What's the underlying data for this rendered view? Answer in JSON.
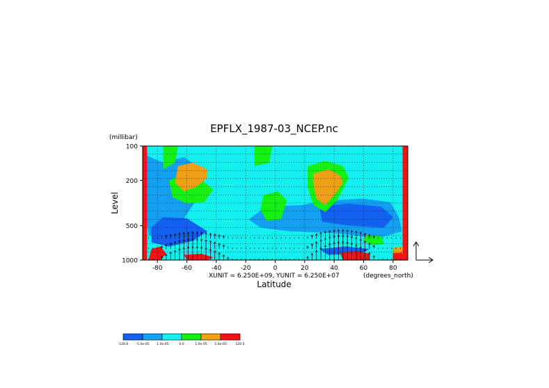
{
  "chart_data": {
    "type": "heatmap",
    "title": "EPFLX_1987-03_NCEP.nc",
    "xlabel": "Latitude",
    "ylabel": "Level",
    "y_unit_label": "(millibar)",
    "x_unit_label": "(degrees_north)",
    "vector_units": "XUNIT = 6.250E+09, YUNIT = 6.250E+07",
    "xlim": [
      -90,
      90
    ],
    "ylim": [
      1000,
      100
    ],
    "y_scale": "log",
    "x_ticks": [
      {
        "value": -80,
        "label": "-80"
      },
      {
        "value": -60,
        "label": "-60"
      },
      {
        "value": -40,
        "label": "-40"
      },
      {
        "value": -20,
        "label": "-20"
      },
      {
        "value": 0,
        "label": "0"
      },
      {
        "value": 20,
        "label": "20"
      },
      {
        "value": 40,
        "label": "40"
      },
      {
        "value": 60,
        "label": "60"
      },
      {
        "value": 80,
        "label": "80"
      }
    ],
    "y_ticks": [
      {
        "value": 100,
        "label": "100"
      },
      {
        "value": 200,
        "label": "200"
      },
      {
        "value": 500,
        "label": "500"
      },
      {
        "value": 1000,
        "label": "1000"
      }
    ],
    "colorbar": {
      "colors": [
        "#1460f0",
        "#14a0f0",
        "#14f0f0",
        "#14f014",
        "#f0a014",
        "#f01414"
      ],
      "labels": [
        "-120.0",
        "-5.0e-05",
        "-1.0e-05",
        "0.0",
        "1.0e-05",
        "5.0e-05",
        "120.0"
      ]
    },
    "regions": [
      {
        "level": 1,
        "lat": [
          [
            -88,
            120
          ],
          [
            -76,
            140
          ],
          [
            -62,
            125
          ],
          [
            -50,
            160
          ],
          [
            -48,
            230
          ],
          [
            -56,
            330
          ],
          [
            -68,
            560
          ],
          [
            -78,
            680
          ],
          [
            -86,
            600
          ],
          [
            -88,
            400
          ]
        ]
      },
      {
        "level": 1,
        "lat": [
          [
            -18,
            440
          ],
          [
            -6,
            340
          ],
          [
            18,
            330
          ],
          [
            34,
            300
          ],
          [
            60,
            290
          ],
          [
            78,
            310
          ],
          [
            84,
            420
          ],
          [
            86,
            560
          ],
          [
            70,
            640
          ],
          [
            40,
            580
          ],
          [
            10,
            560
          ],
          [
            -10,
            520
          ]
        ]
      },
      {
        "level": 0,
        "lat": [
          [
            -84,
            520
          ],
          [
            -76,
            420
          ],
          [
            -60,
            430
          ],
          [
            -46,
            560
          ],
          [
            -56,
            680
          ],
          [
            -72,
            760
          ],
          [
            -84,
            700
          ]
        ]
      },
      {
        "level": 0,
        "lat": [
          [
            30,
            340
          ],
          [
            50,
            320
          ],
          [
            72,
            340
          ],
          [
            80,
            420
          ],
          [
            74,
            520
          ],
          [
            50,
            500
          ],
          [
            32,
            460
          ]
        ]
      },
      {
        "level": 0,
        "lat": [
          [
            30,
            800
          ],
          [
            48,
            760
          ],
          [
            64,
            800
          ],
          [
            58,
            880
          ],
          [
            36,
            900
          ]
        ]
      },
      {
        "level": 3,
        "lat": [
          [
            -76,
            100
          ],
          [
            -66,
            100
          ],
          [
            -68,
            140
          ],
          [
            -76,
            160
          ]
        ]
      },
      {
        "level": 3,
        "lat": [
          [
            -14,
            100
          ],
          [
            -2,
            100
          ],
          [
            -4,
            140
          ],
          [
            -14,
            150
          ]
        ]
      },
      {
        "level": 3,
        "lat": [
          [
            -72,
            200
          ],
          [
            -64,
            180
          ],
          [
            -52,
            190
          ],
          [
            -42,
            240
          ],
          [
            -48,
            310
          ],
          [
            -60,
            320
          ],
          [
            -70,
            280
          ]
        ]
      },
      {
        "level": 3,
        "lat": [
          [
            -8,
            270
          ],
          [
            2,
            250
          ],
          [
            8,
            300
          ],
          [
            4,
            440
          ],
          [
            -6,
            450
          ],
          [
            -10,
            360
          ]
        ]
      },
      {
        "level": 3,
        "lat": [
          [
            22,
            150
          ],
          [
            34,
            135
          ],
          [
            46,
            150
          ],
          [
            50,
            190
          ],
          [
            42,
            300
          ],
          [
            34,
            380
          ],
          [
            26,
            330
          ],
          [
            22,
            230
          ]
        ]
      },
      {
        "level": 3,
        "lat": [
          [
            62,
            600
          ],
          [
            72,
            620
          ],
          [
            74,
            720
          ],
          [
            66,
            740
          ],
          [
            60,
            680
          ]
        ]
      },
      {
        "level": 4,
        "lat": [
          [
            -66,
            150
          ],
          [
            -56,
            140
          ],
          [
            -46,
            160
          ],
          [
            -46,
            190
          ],
          [
            -54,
            230
          ],
          [
            -62,
            250
          ],
          [
            -68,
            210
          ]
        ]
      },
      {
        "level": 4,
        "lat": [
          [
            26,
            175
          ],
          [
            36,
            160
          ],
          [
            44,
            180
          ],
          [
            46,
            210
          ],
          [
            40,
            270
          ],
          [
            34,
            330
          ],
          [
            28,
            290
          ],
          [
            26,
            220
          ]
        ]
      },
      {
        "level": 4,
        "lat": [
          [
            80,
            780
          ],
          [
            88,
            760
          ],
          [
            90,
            1000
          ],
          [
            80,
            1000
          ]
        ]
      },
      {
        "level": 5,
        "lat": [
          [
            -90,
            100
          ],
          [
            -87,
            100
          ],
          [
            -87,
            1000
          ],
          [
            -90,
            1000
          ]
        ]
      },
      {
        "level": 5,
        "lat": [
          [
            86.5,
            100
          ],
          [
            90,
            100
          ],
          [
            90,
            1000
          ],
          [
            86.5,
            1000
          ]
        ]
      },
      {
        "level": 5,
        "lat": [
          [
            -84,
            800
          ],
          [
            -78,
            760
          ],
          [
            -74,
            880
          ],
          [
            -78,
            1000
          ],
          [
            -86,
            1000
          ]
        ]
      },
      {
        "level": 5,
        "lat": [
          [
            -62,
            900
          ],
          [
            -50,
            880
          ],
          [
            -42,
            950
          ],
          [
            -46,
            1000
          ],
          [
            -60,
            1000
          ]
        ]
      },
      {
        "level": 5,
        "lat": [
          [
            44,
            860
          ],
          [
            56,
            840
          ],
          [
            64,
            880
          ],
          [
            64,
            1000
          ],
          [
            46,
            1000
          ]
        ]
      },
      {
        "level": 5,
        "lat": [
          [
            80,
            870
          ],
          [
            86,
            860
          ],
          [
            88,
            1000
          ],
          [
            80,
            1000
          ]
        ]
      }
    ]
  }
}
